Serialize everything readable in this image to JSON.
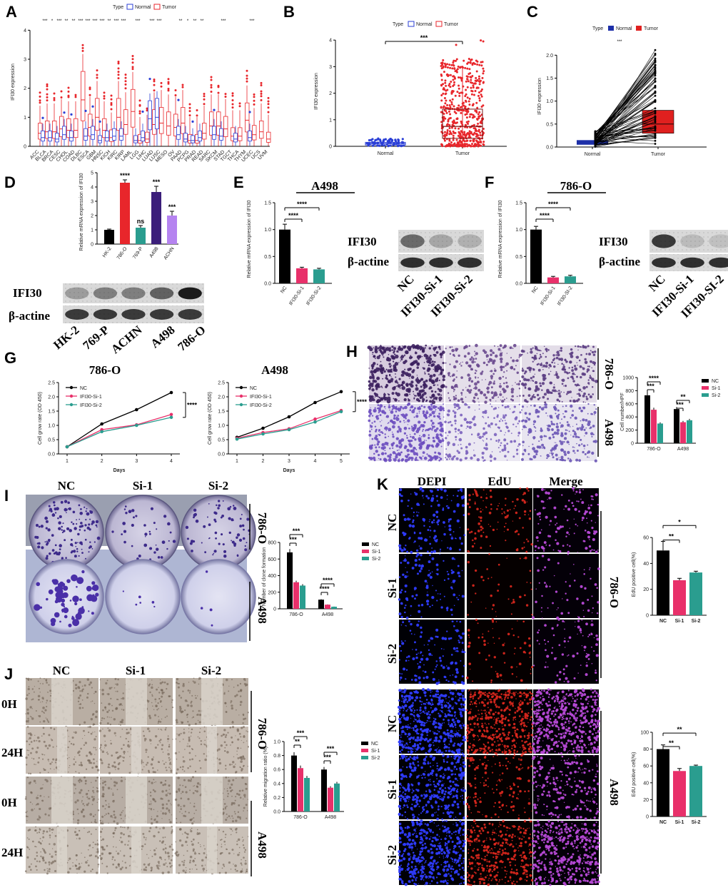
{
  "panels": {
    "A": {
      "label": "A",
      "legend_title": "Type",
      "legend": [
        "Normal",
        "Tumor"
      ],
      "ylabel": "IFI30 expression",
      "yticks": [
        "0",
        "1",
        "2",
        "3",
        "4"
      ],
      "categories": [
        "ACC",
        "BLCA",
        "BRCA",
        "CESC",
        "CHOL",
        "COAD",
        "DLBC",
        "ESCA",
        "GBM",
        "HNSC",
        "KICH",
        "KIRC",
        "KIRP",
        "LAML",
        "LGG",
        "LIHC",
        "LUAD",
        "LUSC",
        "MESO",
        "OV",
        "PAAD",
        "PCPG",
        "PRAD",
        "READ",
        "SARC",
        "SKCM",
        "STAD",
        "TGCT",
        "THCA",
        "THYM",
        "UCEC",
        "UCS",
        "UVM"
      ],
      "sig_marks": [
        {
          "cat": "BLCA",
          "text": "***"
        },
        {
          "cat": "BRCA",
          "text": "*"
        },
        {
          "cat": "CESC",
          "text": "***"
        },
        {
          "cat": "CHOL",
          "text": "**"
        },
        {
          "cat": "COAD",
          "text": "**"
        },
        {
          "cat": "DLBC",
          "text": "***"
        },
        {
          "cat": "ESCA",
          "text": "***"
        },
        {
          "cat": "GBM",
          "text": "***"
        },
        {
          "cat": "HNSC",
          "text": "***"
        },
        {
          "cat": "KICH",
          "text": "**"
        },
        {
          "cat": "KIRC",
          "text": "***"
        },
        {
          "cat": "KIRP",
          "text": "***"
        },
        {
          "cat": "LGG",
          "text": "***"
        },
        {
          "cat": "LUAD",
          "text": "***"
        },
        {
          "cat": "LUSC",
          "text": "***"
        },
        {
          "cat": "PAAD",
          "text": "**"
        },
        {
          "cat": "PCPG",
          "text": "*"
        },
        {
          "cat": "PRAD",
          "text": "**"
        },
        {
          "cat": "READ",
          "text": "**"
        },
        {
          "cat": "STAD",
          "text": "***"
        },
        {
          "cat": "UCEC",
          "text": "***"
        }
      ]
    },
    "B": {
      "label": "B",
      "legend_title": "Type",
      "legend": [
        "Normal",
        "Tumor"
      ],
      "ylabel": "IFI30 expression",
      "yticks": [
        "0",
        "1",
        "2",
        "3",
        "4"
      ],
      "xticks": [
        "Normal",
        "Tumor"
      ],
      "sig": "***"
    },
    "C": {
      "label": "C",
      "legend_title": "Type",
      "legend": [
        "Normal",
        "Tumor"
      ],
      "ylabel": "IFI30 expression",
      "yticks": [
        "0.0",
        "0.5",
        "1.0",
        "1.5",
        "2.0"
      ],
      "xticks": [
        "Normal",
        "Tumor"
      ],
      "sig": "***"
    },
    "D": {
      "label": "D",
      "ylabel": "Relative mRNA expression of IFI30",
      "yticks": [
        "0",
        "1",
        "2",
        "3",
        "4",
        "5"
      ],
      "sig": [
        "****",
        "ns",
        "***",
        "***"
      ],
      "blot_labels": [
        "IFI30",
        "β-actine"
      ],
      "lanes": [
        "HK-2",
        "769-P",
        "ACHN",
        "A498",
        "786-O"
      ]
    },
    "E": {
      "label": "E",
      "title": "A498",
      "ylabel": "Relative mRNA expression of IFI30",
      "yticks": [
        "0.0",
        "0.5",
        "1.0",
        "1.5"
      ],
      "sig": [
        "****",
        "****"
      ],
      "blot_labels": [
        "IFI30",
        "β-actine"
      ],
      "lanes": [
        "NC",
        "IFI30-Si-1",
        "IFI30-Si-2"
      ]
    },
    "F": {
      "label": "F",
      "title": "786-O",
      "ylabel": "Relative mRNA expression of IFI30",
      "yticks": [
        "0.0",
        "0.5",
        "1.0",
        "1.5"
      ],
      "sig": [
        "****",
        "****"
      ],
      "blot_labels": [
        "IFI30",
        "β-actine"
      ],
      "lanes": [
        "NC",
        "IFI30-Si-1",
        "IFI30-SI-2"
      ]
    },
    "G": {
      "label": "G",
      "left_title": "786-O",
      "right_title": "A498",
      "ylabel": "Cell grow rate (OD 450)",
      "xlabel": "Days",
      "legend": [
        "NC",
        "IFI30-Si-1",
        "IFI30-Si-2"
      ],
      "sig": "****",
      "left_xticks": [
        "1",
        "2",
        "3",
        "4"
      ],
      "right_xticks": [
        "1",
        "2",
        "3",
        "4",
        "5"
      ],
      "left_yticks": [
        "0.0",
        "0.5",
        "1.0",
        "1.5",
        "2.0",
        "2.5"
      ],
      "right_yticks": [
        "0.0",
        "0.5",
        "1.0",
        "1.5",
        "2.0",
        "2.5"
      ]
    },
    "H": {
      "label": "H",
      "cols": [
        "NC",
        "Si-1",
        "Si-2"
      ],
      "rows": [
        "786-O",
        "A498"
      ],
      "ylabel": "Cell number/HPF",
      "yticks": [
        "0",
        "200",
        "400",
        "600",
        "800",
        "1000"
      ],
      "legend": [
        "NC",
        "Si-1",
        "Si-2"
      ],
      "xticks": [
        "786-O",
        "A498"
      ],
      "sig": [
        "***",
        "****",
        "***",
        "**"
      ]
    },
    "I": {
      "label": "I",
      "cols": [
        "NC",
        "Si-1",
        "Si-2"
      ],
      "rows": [
        "786-O",
        "A498"
      ],
      "ylabel": "Number of clone formation",
      "yticks": [
        "0",
        "200",
        "400",
        "600",
        "800"
      ],
      "legend": [
        "NC",
        "Si-1",
        "Si-2"
      ],
      "xticks": [
        "786-O",
        "A498"
      ],
      "sig": [
        "***",
        "***",
        "****",
        "****"
      ]
    },
    "J": {
      "label": "J",
      "cols": [
        "NC",
        "Si-1",
        "Si-2"
      ],
      "rows": [
        "0H",
        "24H",
        "0H",
        "24H"
      ],
      "groups": [
        "786-O",
        "A498"
      ],
      "ylabel": "Relative migration ratio (%)",
      "yticks": [
        "0.0",
        "0.2",
        "0.4",
        "0.6",
        "0.8",
        "1.0"
      ],
      "legend": [
        "NC",
        "Si-1",
        "Si-2"
      ],
      "xticks": [
        "786-O",
        "A498"
      ],
      "sig": [
        "**",
        "***",
        "***",
        "***"
      ]
    },
    "K": {
      "label": "K",
      "cols": [
        "DEPI",
        "EdU",
        "Merge"
      ],
      "rows": [
        "NC",
        "Si-1",
        "Si-2"
      ],
      "groups": [
        "786-O",
        "A498"
      ],
      "ylabel": "EdU positive cell(%)",
      "top_yticks": [
        "0",
        "20",
        "40",
        "60"
      ],
      "bottom_yticks": [
        "0",
        "20",
        "40",
        "60",
        "80",
        "100"
      ],
      "xticks": [
        "NC",
        "Si-1",
        "Si-2"
      ],
      "top_sig": [
        "**",
        "*"
      ],
      "bottom_sig": [
        "**",
        "**"
      ]
    }
  },
  "colors": {
    "normal": "#2b3fd6",
    "tumor": "#e8262b",
    "black": "#000000",
    "pink": "#e8306a",
    "teal": "#2a9d8f",
    "orange": "#f4a261",
    "purple": "#3b1e7a",
    "lavender": "#b583f0",
    "navy": "#1d2fa8",
    "red": "#e0201f"
  },
  "chart_data": [
    {
      "panel": "A",
      "type": "box",
      "categories": [
        "ACC",
        "BLCA",
        "BRCA",
        "CESC",
        "CHOL",
        "COAD",
        "DLBC",
        "ESCA",
        "GBM",
        "HNSC",
        "KICH",
        "KIRC",
        "KIRP",
        "LAML",
        "LGG",
        "LIHC",
        "LUAD",
        "LUSC",
        "MESO",
        "OV",
        "PAAD",
        "PCPG",
        "PRAD",
        "READ",
        "SARC",
        "SKCM",
        "STAD",
        "TGCT",
        "THCA",
        "THYM",
        "UCEC",
        "UCS",
        "UVM"
      ],
      "series": [
        {
          "name": "Normal",
          "median": [
            null,
            0.3,
            0.3,
            0.25,
            0.4,
            0.3,
            null,
            0.35,
            0.4,
            0.2,
            0.3,
            0.35,
            0.35,
            null,
            0.2,
            0.3,
            0.95,
            1.0,
            null,
            null,
            0.4,
            0.25,
            0.2,
            0.3,
            null,
            0.4,
            0.35,
            null,
            0.25,
            null,
            0.3,
            null,
            null
          ]
        },
        {
          "name": "Tumor",
          "median": [
            0.45,
            0.5,
            0.5,
            0.6,
            0.55,
            0.55,
            1.6,
            0.65,
            1.0,
            0.55,
            0.3,
            1.0,
            0.75,
            1.2,
            0.2,
            0.25,
            0.75,
            0.8,
            0.7,
            0.65,
            0.8,
            0.2,
            0.2,
            0.45,
            0.7,
            0.7,
            0.6,
            0.35,
            0.35,
            0.9,
            0.4,
            0.5,
            0.25
          ]
        }
      ],
      "ylim": [
        0,
        4.5
      ]
    },
    {
      "panel": "B",
      "type": "box",
      "categories": [
        "Normal",
        "Tumor"
      ],
      "q1": [
        0.05,
        0.3
      ],
      "median": [
        0.1,
        0.75
      ],
      "q3": [
        0.15,
        1.4
      ],
      "whisker_high": [
        0.3,
        3.0
      ],
      "ylim": [
        0,
        4.3
      ]
    },
    {
      "panel": "C",
      "type": "paired-box",
      "categories": [
        "Normal",
        "Tumor"
      ],
      "q1": [
        0.05,
        0.3
      ],
      "median": [
        0.1,
        0.5
      ],
      "q3": [
        0.15,
        0.8
      ],
      "ylim": [
        0,
        2.3
      ]
    },
    {
      "panel": "D",
      "type": "bar",
      "categories": [
        "HK-2",
        "786-O",
        "769-P",
        "A498",
        "ACHN"
      ],
      "values": [
        1.0,
        4.3,
        1.15,
        3.65,
        2.0
      ],
      "errors": [
        0.05,
        0.2,
        0.15,
        0.4,
        0.3
      ],
      "ylim": [
        0,
        5
      ]
    },
    {
      "panel": "E",
      "type": "bar",
      "categories": [
        "NC",
        "IFI30-Si-1",
        "IFI30-Si-2"
      ],
      "values": [
        1.0,
        0.28,
        0.26
      ],
      "errors": [
        0.1,
        0.02,
        0.02
      ],
      "ylim": [
        0,
        1.5
      ]
    },
    {
      "panel": "F",
      "type": "bar",
      "categories": [
        "NC",
        "IFI30-Si-1",
        "IFI30-SI-2"
      ],
      "values": [
        1.0,
        0.11,
        0.13
      ],
      "errors": [
        0.06,
        0.02,
        0.02
      ],
      "ylim": [
        0,
        1.5
      ]
    },
    {
      "panel": "G-786-O",
      "type": "line",
      "x": [
        1,
        2,
        3,
        4
      ],
      "series": [
        {
          "name": "NC",
          "values": [
            0.25,
            1.05,
            1.55,
            2.15
          ]
        },
        {
          "name": "IFI30-Si-1",
          "values": [
            0.25,
            0.85,
            1.02,
            1.38
          ]
        },
        {
          "name": "IFI30-Si-2",
          "values": [
            0.25,
            0.78,
            1.0,
            1.28
          ]
        }
      ],
      "ylim": [
        0,
        2.5
      ]
    },
    {
      "panel": "G-A498",
      "type": "line",
      "x": [
        1,
        2,
        3,
        4,
        5
      ],
      "series": [
        {
          "name": "NC",
          "values": [
            0.58,
            0.9,
            1.3,
            1.8,
            2.18
          ]
        },
        {
          "name": "IFI30-Si-1",
          "values": [
            0.55,
            0.75,
            0.88,
            1.22,
            1.52
          ]
        },
        {
          "name": "IFI30-Si-2",
          "values": [
            0.52,
            0.7,
            0.85,
            1.12,
            1.48
          ]
        }
      ],
      "ylim": [
        0,
        2.5
      ]
    },
    {
      "panel": "H",
      "type": "bar",
      "categories": [
        "786-O",
        "A498"
      ],
      "series": [
        {
          "name": "NC",
          "values": [
            730,
            520
          ]
        },
        {
          "name": "Si-1",
          "values": [
            510,
            320
          ]
        },
        {
          "name": "Si-2",
          "values": [
            300,
            350
          ]
        }
      ],
      "ylim": [
        0,
        1000
      ]
    },
    {
      "panel": "I",
      "type": "bar",
      "categories": [
        "786-O",
        "A498"
      ],
      "series": [
        {
          "name": "NC",
          "values": [
            680,
            110
          ]
        },
        {
          "name": "Si-1",
          "values": [
            320,
            50
          ]
        },
        {
          "name": "Si-2",
          "values": [
            280,
            25
          ]
        }
      ],
      "ylim": [
        0,
        800
      ]
    },
    {
      "panel": "J",
      "type": "bar",
      "categories": [
        "786-O",
        "A498"
      ],
      "series": [
        {
          "name": "NC",
          "values": [
            0.8,
            0.6
          ]
        },
        {
          "name": "Si-1",
          "values": [
            0.62,
            0.34
          ]
        },
        {
          "name": "Si-2",
          "values": [
            0.48,
            0.4
          ]
        }
      ],
      "ylim": [
        0,
        1.0
      ]
    },
    {
      "panel": "K-786-O",
      "type": "bar",
      "categories": [
        "NC",
        "Si-1",
        "Si-2"
      ],
      "values": [
        50,
        27,
        33
      ],
      "errors": [
        7,
        1.5,
        1
      ],
      "ylim": [
        0,
        70
      ]
    },
    {
      "panel": "K-A498",
      "type": "bar",
      "categories": [
        "NC",
        "Si-1",
        "Si-2"
      ],
      "values": [
        80,
        54,
        60
      ],
      "errors": [
        5,
        3,
        1
      ],
      "ylim": [
        0,
        100
      ]
    }
  ]
}
